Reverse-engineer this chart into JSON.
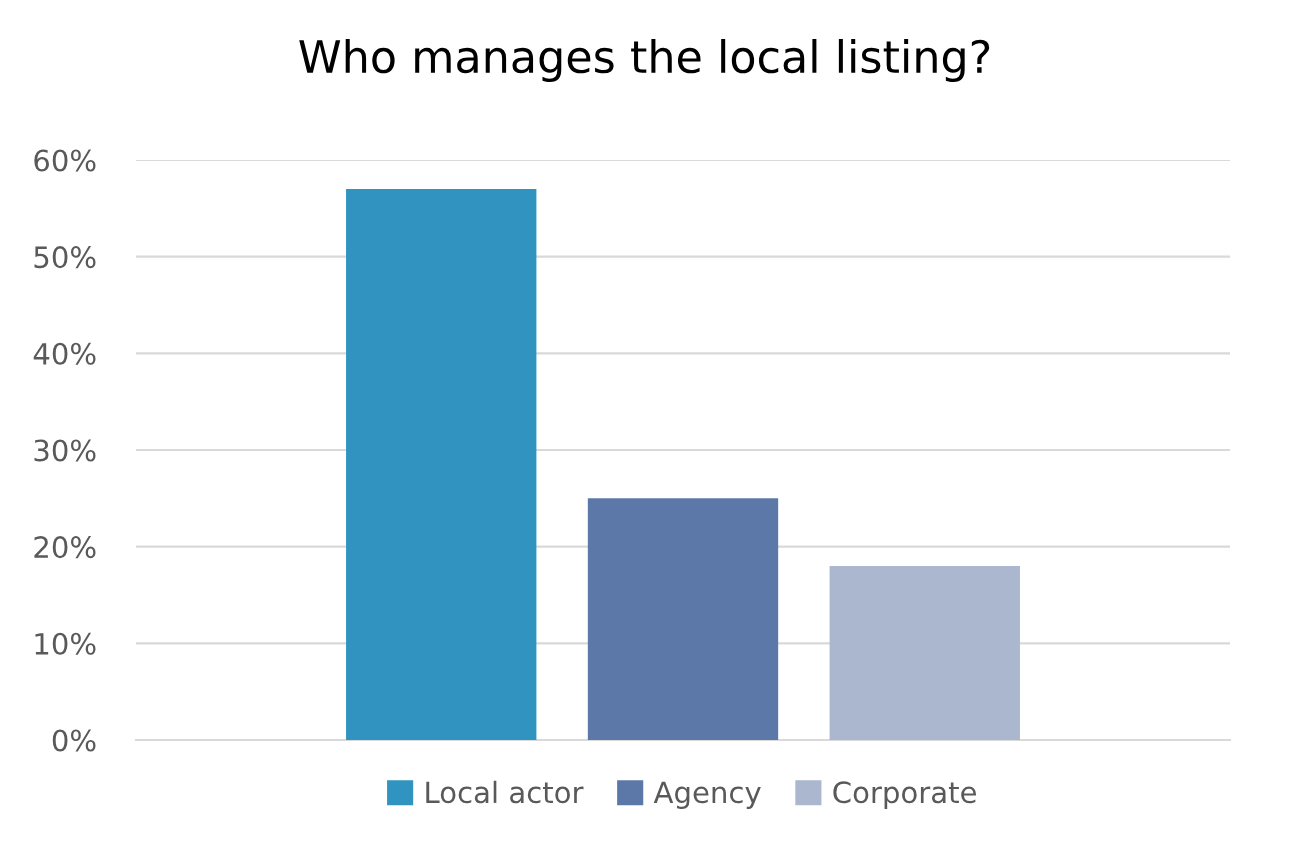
{
  "chart_data": {
    "type": "bar",
    "title": "Who manages the local listing?",
    "categories": [
      null
    ],
    "series": [
      {
        "name": "Local actor",
        "color": "#3194c0",
        "values": [
          57
        ]
      },
      {
        "name": "Agency",
        "color": "#5b78a8",
        "values": [
          25
        ]
      },
      {
        "name": "Corporate",
        "color": "#abb6cf",
        "values": [
          18
        ]
      }
    ],
    "ylim": [
      0,
      60
    ],
    "yticks": [
      {
        "value": 0,
        "label": "0%"
      },
      {
        "value": 10,
        "label": "10%"
      },
      {
        "value": 20,
        "label": "20%"
      },
      {
        "value": 30,
        "label": "30%"
      },
      {
        "value": 40,
        "label": "40%"
      },
      {
        "value": 50,
        "label": "50%"
      },
      {
        "value": 60,
        "label": "60%"
      }
    ],
    "grid": "y",
    "legend": "bottom"
  }
}
